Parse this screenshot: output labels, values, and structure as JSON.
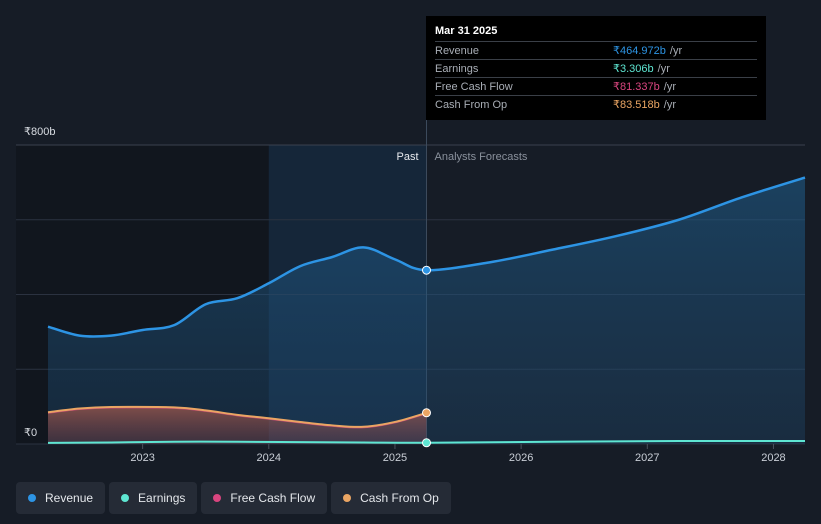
{
  "colors": {
    "revenue": "#2d94e4",
    "earnings": "#5ee6d2",
    "fcf": "#d9457f",
    "cfo": "#eaa563",
    "grid": "#2b3240",
    "background": "#161c26"
  },
  "tooltip": {
    "date": "Mar 31 2025",
    "rows": [
      {
        "name": "Revenue",
        "value": "₹464.972b",
        "unit": "/yr"
      },
      {
        "name": "Earnings",
        "value": "₹3.306b",
        "unit": "/yr"
      },
      {
        "name": "Free Cash Flow",
        "value": "₹81.337b",
        "unit": "/yr"
      },
      {
        "name": "Cash From Op",
        "value": "₹83.518b",
        "unit": "/yr"
      }
    ]
  },
  "legend": [
    {
      "label": "Revenue",
      "color": "#2d94e4"
    },
    {
      "label": "Earnings",
      "color": "#5ee6d2"
    },
    {
      "label": "Free Cash Flow",
      "color": "#d9457f"
    },
    {
      "label": "Cash From Op",
      "color": "#eaa563"
    }
  ],
  "chart_data": {
    "type": "line",
    "ylabel_top": "₹800b",
    "ylabel_bottom": "₹0",
    "ylim": [
      0,
      800
    ],
    "xlim": [
      2022.25,
      2028.25
    ],
    "x_ticks": [
      2023,
      2024,
      2025,
      2026,
      2027,
      2028
    ],
    "x_tick_labels": [
      "2023",
      "2024",
      "2025",
      "2026",
      "2027",
      "2028"
    ],
    "past_label": "Past",
    "forecast_label": "Analysts Forecasts",
    "highlight_range": [
      2024.0,
      2025.25
    ],
    "divider_x": 2025.25,
    "series": [
      {
        "name": "Revenue",
        "past": [
          [
            2022.25,
            314
          ],
          [
            2022.5,
            290
          ],
          [
            2022.75,
            290
          ],
          [
            2023.0,
            305
          ],
          [
            2023.25,
            318
          ],
          [
            2023.5,
            374
          ],
          [
            2023.75,
            390
          ],
          [
            2024.0,
            430
          ],
          [
            2024.25,
            476
          ],
          [
            2024.5,
            500
          ],
          [
            2024.75,
            526
          ],
          [
            2025.0,
            494
          ],
          [
            2025.25,
            465
          ]
        ],
        "forecast": [
          [
            2025.25,
            465
          ],
          [
            2025.75,
            486
          ],
          [
            2026.25,
            520
          ],
          [
            2026.75,
            556
          ],
          [
            2027.25,
            600
          ],
          [
            2027.75,
            660
          ],
          [
            2028.25,
            713
          ]
        ]
      },
      {
        "name": "Earnings",
        "past": [
          [
            2022.25,
            3
          ],
          [
            2022.75,
            4
          ],
          [
            2023.25,
            6
          ],
          [
            2023.75,
            6
          ],
          [
            2024.25,
            5
          ],
          [
            2024.75,
            4
          ],
          [
            2025.25,
            3.306
          ]
        ],
        "forecast": [
          [
            2025.25,
            3.306
          ],
          [
            2026.25,
            6
          ],
          [
            2027.25,
            8
          ],
          [
            2028.25,
            8
          ]
        ]
      },
      {
        "name": "Free Cash Flow",
        "past": [
          [
            2022.25,
            83
          ],
          [
            2022.5,
            93
          ],
          [
            2022.75,
            97
          ],
          [
            2023.25,
            96
          ],
          [
            2023.5,
            88
          ],
          [
            2023.75,
            76
          ],
          [
            2024.0,
            67
          ],
          [
            2024.25,
            57
          ],
          [
            2024.5,
            48
          ],
          [
            2024.75,
            44
          ],
          [
            2025.0,
            57
          ],
          [
            2025.25,
            81.337
          ]
        ],
        "forecast": []
      },
      {
        "name": "Cash From Op",
        "past": [
          [
            2022.25,
            85
          ],
          [
            2022.5,
            95
          ],
          [
            2022.75,
            99
          ],
          [
            2023.25,
            98
          ],
          [
            2023.5,
            90
          ],
          [
            2023.75,
            78
          ],
          [
            2024.0,
            69
          ],
          [
            2024.25,
            59
          ],
          [
            2024.5,
            50
          ],
          [
            2024.75,
            46
          ],
          [
            2025.0,
            59
          ],
          [
            2025.25,
            83.518
          ]
        ],
        "forecast": []
      }
    ]
  }
}
